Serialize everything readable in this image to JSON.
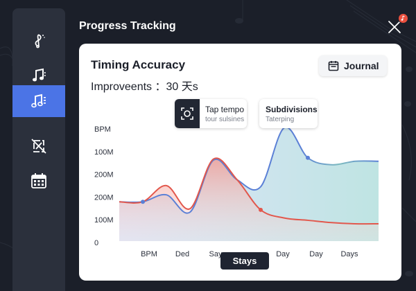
{
  "header": {
    "title": "Progress Tracking"
  },
  "sidebar": {
    "items": [
      {
        "icon": "treble-clef-icon",
        "active": false
      },
      {
        "icon": "music-notes-icon",
        "active": false
      },
      {
        "icon": "music-list-icon",
        "active": true
      },
      {
        "icon": "no-metronome-icon",
        "active": false
      },
      {
        "icon": "calendar-icon",
        "active": false
      }
    ]
  },
  "card": {
    "title": "Timing Accuracy",
    "subtitle": "Improveents ：30 天s",
    "journal_label": "Journal",
    "toggles": {
      "tap_tempo": {
        "title": "Tap tempo",
        "subtitle": "tour sulsines"
      },
      "subdivisions": {
        "title": "Subdivisions",
        "subtitle": "Taterping"
      }
    },
    "stays_label": "Stays"
  },
  "colors": {
    "accent": "#4b74e6",
    "red_series": "#e2574c",
    "blue_series": "#5b80d6",
    "notification": "#e9503f"
  },
  "chart_data": {
    "type": "area",
    "y_tick_labels": [
      "BPM",
      "100M",
      "200M",
      "200M",
      "100M",
      "0"
    ],
    "x_tick_labels": [
      "BPM",
      "Ded",
      "Say",
      "Day",
      "Day",
      "Days"
    ],
    "ylim": [
      0,
      100
    ],
    "x": [
      0,
      1,
      2,
      3,
      4,
      5,
      6,
      7,
      8,
      9,
      10,
      11
    ],
    "series": [
      {
        "color": "#e2574c",
        "values": [
          34,
          34,
          48,
          28,
          71,
          53,
          27,
          20,
          18,
          16,
          15,
          15
        ]
      },
      {
        "color": "#5b80d6",
        "values": [
          34,
          34,
          40,
          25,
          70,
          53,
          47,
          98,
          72,
          66,
          69,
          69
        ]
      }
    ],
    "highlighted_points": [
      {
        "series": 1,
        "x": 1,
        "color": "#5b80d6"
      },
      {
        "series": 0,
        "x": 6,
        "color": "#e2574c"
      },
      {
        "series": 1,
        "x": 8,
        "color": "#5b80d6"
      }
    ],
    "grid": false,
    "legend": "none"
  }
}
